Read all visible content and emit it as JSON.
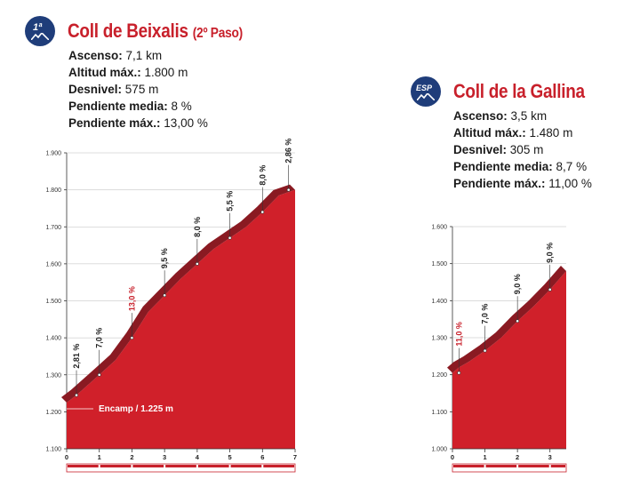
{
  "climbs": [
    {
      "badge": "1ª",
      "title": "Coll de Beixalis",
      "title_suffix": "(2º Paso)",
      "stats": [
        {
          "label": "Ascenso:",
          "value": "7,1 km"
        },
        {
          "label": "Altitud máx.:",
          "value": "1.800 m"
        },
        {
          "label": "Desnivel:",
          "value": "575 m"
        },
        {
          "label": "Pendiente media:",
          "value": "8 %"
        },
        {
          "label": "Pendiente máx.:",
          "value": "13,00 %"
        }
      ]
    },
    {
      "badge": "ESP",
      "title": "Coll de la Gallina",
      "title_suffix": "",
      "stats": [
        {
          "label": "Ascenso:",
          "value": "3,5 km"
        },
        {
          "label": "Altitud máx.:",
          "value": "1.480 m"
        },
        {
          "label": "Desnivel:",
          "value": "305 m"
        },
        {
          "label": "Pendiente media:",
          "value": "8,7 %"
        },
        {
          "label": "Pendiente máx.:",
          "value": "11,00 %"
        }
      ]
    }
  ],
  "chart_data": [
    {
      "type": "area",
      "x_unit": "km",
      "y_unit": "m",
      "xlim": [
        0,
        7
      ],
      "ylim": [
        1100,
        1900
      ],
      "xticks": [
        "0",
        "1",
        "2",
        "3",
        "4",
        "5",
        "6",
        "7"
      ],
      "yticks": [
        "1.100",
        "1.200",
        "1.300",
        "1.400",
        "1.500",
        "1.600",
        "1.700",
        "1.800",
        "1.900"
      ],
      "profile_x": [
        0,
        0.3,
        1,
        1.5,
        2,
        2.5,
        3,
        3.5,
        4,
        4.5,
        5,
        5.5,
        6,
        6.5,
        7
      ],
      "profile_y": [
        1225,
        1245,
        1300,
        1340,
        1400,
        1470,
        1515,
        1560,
        1600,
        1640,
        1670,
        1700,
        1740,
        1785,
        1800
      ],
      "segments": [
        {
          "x": 0.3,
          "y": 1245,
          "label": "2,81 %",
          "max": false
        },
        {
          "x": 1,
          "y": 1300,
          "label": "7,0 %",
          "max": false
        },
        {
          "x": 2,
          "y": 1400,
          "label": "13,0 %",
          "max": true
        },
        {
          "x": 3,
          "y": 1515,
          "label": "9,5 %",
          "max": false
        },
        {
          "x": 4,
          "y": 1600,
          "label": "8,0 %",
          "max": false
        },
        {
          "x": 5,
          "y": 1670,
          "label": "5,5 %",
          "max": false
        },
        {
          "x": 6,
          "y": 1740,
          "label": "8,0 %",
          "max": false
        },
        {
          "x": 6.8,
          "y": 1800,
          "label": "2,86 %",
          "max": false
        }
      ],
      "start_label": "Encamp / 1.225 m",
      "start_y": 1225
    },
    {
      "type": "area",
      "x_unit": "km",
      "y_unit": "m",
      "xlim": [
        0,
        3.5
      ],
      "ylim": [
        1000,
        1600
      ],
      "xticks": [
        "0",
        "1",
        "2",
        "3"
      ],
      "yticks": [
        "1.000",
        "1.100",
        "1.200",
        "1.300",
        "1.400",
        "1.500",
        "1.600"
      ],
      "profile_x": [
        0,
        0.2,
        0.5,
        1,
        1.5,
        2,
        2.5,
        3,
        3.5
      ],
      "profile_y": [
        1205,
        1220,
        1235,
        1265,
        1300,
        1345,
        1385,
        1430,
        1480
      ],
      "segments": [
        {
          "x": 0.2,
          "y": 1205,
          "label": "11,0 %",
          "max": true
        },
        {
          "x": 1,
          "y": 1265,
          "label": "7,0 %",
          "max": false
        },
        {
          "x": 2,
          "y": 1345,
          "label": "9,0 %",
          "max": false
        },
        {
          "x": 3,
          "y": 1430,
          "label": "9,0 %",
          "max": false
        }
      ],
      "start_label": "",
      "start_y": 1205
    }
  ],
  "colors": {
    "accent": "#c8202b",
    "profile_fill": "#d0202a",
    "profile_top": "#8a1a22",
    "badge": "#1f3d7a"
  }
}
